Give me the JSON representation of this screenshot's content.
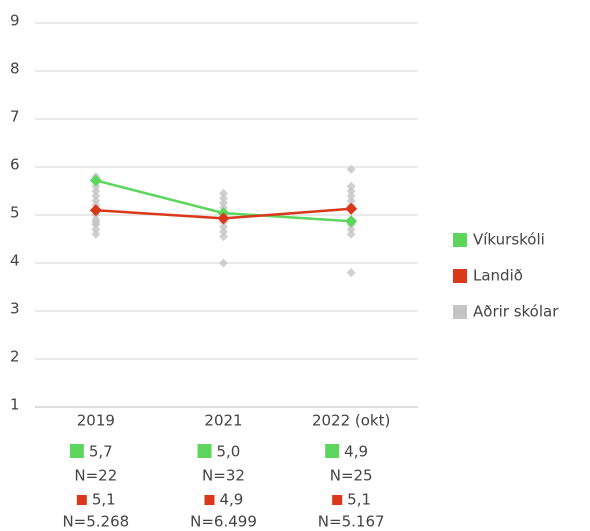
{
  "chart_data": {
    "type": "line",
    "categories": [
      "2019",
      "2021",
      "2022 (okt)"
    ],
    "ylim": [
      1,
      9
    ],
    "yticks": [
      1,
      2,
      3,
      4,
      5,
      6,
      7,
      8,
      9
    ],
    "grid": true,
    "legend": "right",
    "series": [
      {
        "name": "Víkurskóli",
        "color": "#5cd65c",
        "values": [
          5.72,
          5.04,
          4.87
        ],
        "value_labels": [
          "5,7",
          "5,0",
          "4,9"
        ],
        "n_labels": [
          "N=22",
          "N=32",
          "N=25"
        ]
      },
      {
        "name": "Landið",
        "color": "#d9391a",
        "values": [
          5.1,
          4.93,
          5.13
        ],
        "value_labels": [
          "5,1",
          "4,9",
          "5,1"
        ],
        "n_labels": [
          "N=5.268",
          "N=6.499",
          "N=5.167"
        ]
      },
      {
        "name": "Aðrir skólar",
        "color": "#c4c4c4",
        "values": [
          [
            5.8,
            5.7,
            5.6,
            5.5,
            5.4,
            5.3,
            5.2,
            5.1,
            5.0,
            4.9,
            4.85,
            4.8,
            4.7,
            4.6
          ],
          [
            5.45,
            5.35,
            5.25,
            5.15,
            5.05,
            4.95,
            4.85,
            4.75,
            4.65,
            4.55,
            4.0
          ],
          [
            5.95,
            5.6,
            5.5,
            5.4,
            5.3,
            5.2,
            5.1,
            4.9,
            4.8,
            4.7,
            4.6,
            3.8
          ]
        ]
      }
    ]
  }
}
